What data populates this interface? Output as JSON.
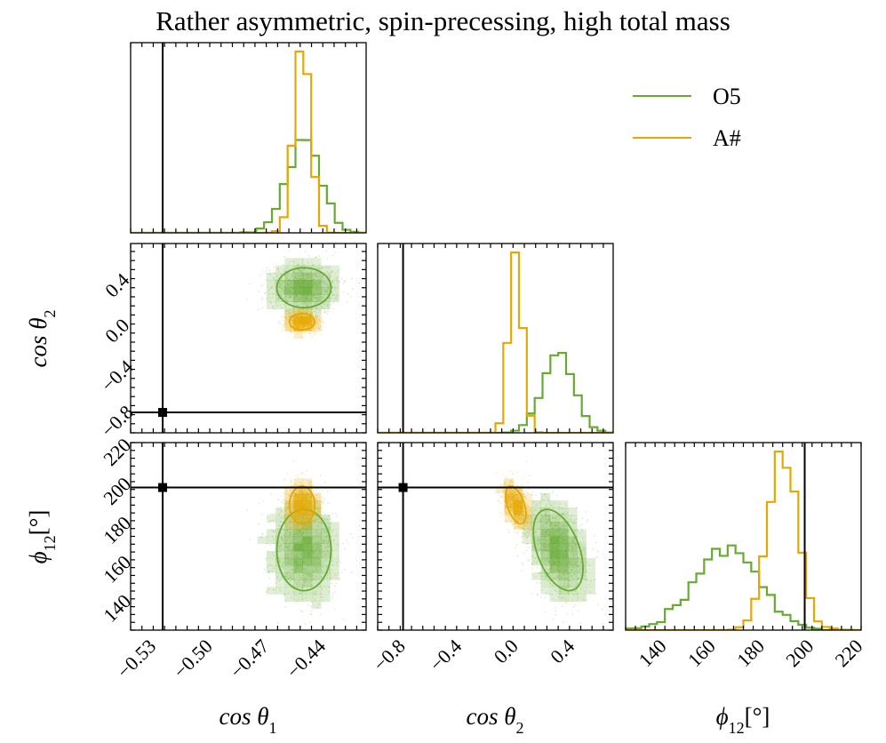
{
  "chart_data": {
    "type": "corner",
    "title": "Rather asymmetric, spin-precessing, high total mass",
    "parameters": [
      {
        "key": "cos_theta1",
        "label": "cos θ",
        "sub": "1",
        "range": [
          -0.54,
          -0.415
        ],
        "ticks": [
          "-0.53",
          "-0.50",
          "-0.47",
          "-0.44"
        ],
        "tick_values": [
          -0.53,
          -0.5,
          -0.47,
          -0.44
        ],
        "truth": -0.523
      },
      {
        "key": "cos_theta2",
        "label": "cos θ",
        "sub": "2",
        "range": [
          -0.95,
          0.72
        ],
        "ticks": [
          "-0.8",
          "-0.4",
          "0.0",
          "0.4"
        ],
        "tick_values": [
          -0.8,
          -0.4,
          0.0,
          0.4
        ],
        "truth": -0.77
      },
      {
        "key": "phi12",
        "label": "ϕ",
        "sub": "12",
        "unit": "[°]",
        "range": [
          126,
          222
        ],
        "ticks": [
          "140",
          "160",
          "180",
          "200",
          "220"
        ],
        "tick_values": [
          140,
          160,
          180,
          200,
          220
        ],
        "truth": 199
      }
    ],
    "legend": {
      "position": "top-right",
      "entries": [
        {
          "name": "O5",
          "color": "#66aa33"
        },
        {
          "name": "A#",
          "color": "#e6a800"
        }
      ]
    },
    "truth_color": "#000000",
    "series": [
      {
        "name": "O5",
        "color": "#66aa33",
        "mean": {
          "cos_theta1": -0.448,
          "cos_theta2": 0.33,
          "phi12": 167
        },
        "sd": {
          "cos_theta1": 0.009,
          "cos_theta2": 0.11,
          "phi12": 13
        },
        "corr": {
          "t1_t2": 0.0,
          "t1_phi": 0.0,
          "t2_phi": -0.45
        }
      },
      {
        "name": "A#",
        "color": "#e6a800",
        "mean": {
          "cos_theta1": -0.449,
          "cos_theta2": 0.03,
          "phi12": 190
        },
        "sd": {
          "cos_theta1": 0.0042,
          "cos_theta2": 0.045,
          "phi12": 6
        },
        "corr": {
          "t1_t2": 0.0,
          "t1_phi": 0.0,
          "t2_phi": -0.5
        }
      }
    ]
  }
}
